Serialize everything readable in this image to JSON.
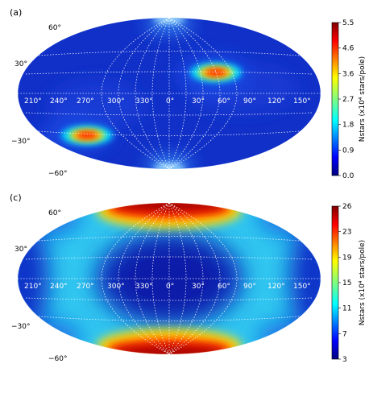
{
  "chart_data": [
    {
      "type": "heatmap",
      "panel_label": "(a)",
      "projection": "aitoff-hammer",
      "longitude_ticks": [
        "210°",
        "240°",
        "270°",
        "300°",
        "330°",
        "0°",
        "30°",
        "60°",
        "90°",
        "120°",
        "150°"
      ],
      "latitude_ticks": [
        "60°",
        "30°",
        "−30°",
        "−60°"
      ],
      "colorbar": {
        "label": "Nstars (x10⁴ stars/pole)",
        "ticks": [
          "0.0",
          "0.9",
          "1.8",
          "2.7",
          "3.6",
          "4.6",
          "5.5"
        ],
        "range": [
          0.0,
          5.5
        ],
        "colormap": "jet"
      },
      "features": [
        {
          "lon": 45,
          "lat": 20,
          "value": 5.0
        },
        {
          "lon": 248,
          "lat": -20,
          "value": 5.0
        },
        {
          "lon": 0,
          "lat": 90,
          "value": 1.5
        },
        {
          "lon": 0,
          "lat": -90,
          "value": 1.5
        }
      ]
    },
    {
      "type": "heatmap",
      "panel_label": "(c)",
      "projection": "aitoff-hammer",
      "longitude_ticks": [
        "210°",
        "240°",
        "270°",
        "300°",
        "330°",
        "0°",
        "30°",
        "60°",
        "90°",
        "120°",
        "150°"
      ],
      "latitude_ticks": [
        "60°",
        "30°",
        "−30°",
        "−60°"
      ],
      "colorbar": {
        "label": "Nstars (x10⁴ stars/pole)",
        "ticks": [
          "3",
          "7",
          "11",
          "15",
          "19",
          "23",
          "26"
        ],
        "range": [
          3,
          26
        ],
        "colormap": "jet"
      },
      "features": [
        {
          "description_band": "ring",
          "value": 13
        },
        {
          "lon": 0,
          "lat": 90,
          "value": 26
        },
        {
          "lon": 0,
          "lat": -90,
          "value": 26
        }
      ]
    }
  ]
}
